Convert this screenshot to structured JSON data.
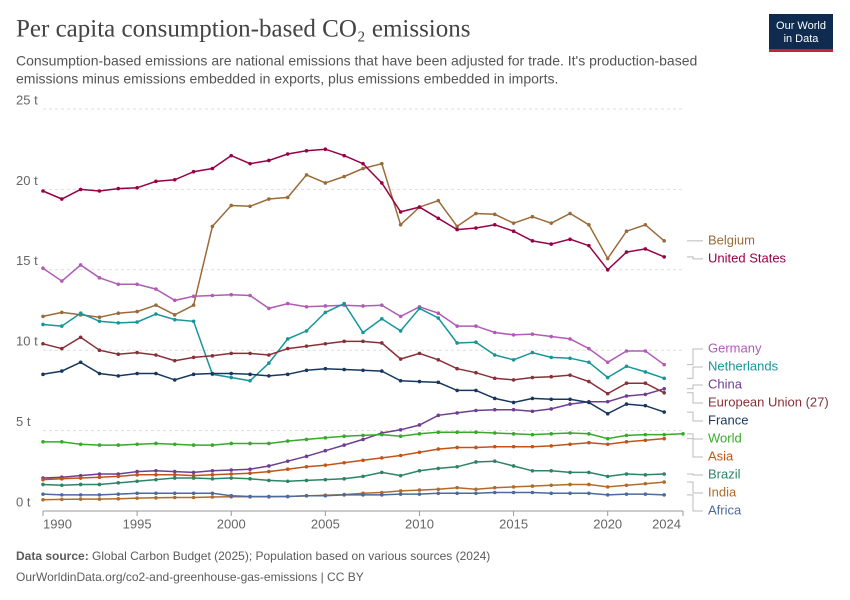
{
  "logo": [
    "Our World",
    "in Data"
  ],
  "chart_data": {
    "type": "line",
    "title": "Per capita consumption-based CO₂ emissions",
    "subtitle": [
      "Consumption-based emissions are national emissions that have been adjusted for trade. It's production-based",
      "emissions minus emissions embedded in exports, plus emissions embedded in imports."
    ],
    "source_label": "Data source:",
    "source": "Global Carbon Budget (2025); Population based on various sources (2024)",
    "url": "OurWorldinData.org/co2-and-greenhouse-gas-emissions | CC BY",
    "x": [
      1990,
      1991,
      1992,
      1993,
      1994,
      1995,
      1996,
      1997,
      1998,
      1999,
      2000,
      2001,
      2002,
      2003,
      2004,
      2005,
      2006,
      2007,
      2008,
      2009,
      2010,
      2011,
      2012,
      2013,
      2014,
      2015,
      2016,
      2017,
      2018,
      2019,
      2020,
      2021,
      2022,
      2023,
      2024
    ],
    "xlim": [
      1990,
      2024
    ],
    "xticks": [
      1990,
      1995,
      2000,
      2005,
      2010,
      2015,
      2020,
      2024
    ],
    "ylim": [
      0,
      25
    ],
    "yticks": [
      {
        "value": 0,
        "label": "0 t"
      },
      {
        "value": 5,
        "label": "5 t"
      },
      {
        "value": 10,
        "label": "10 t"
      },
      {
        "value": 15,
        "label": "15 t"
      },
      {
        "value": 20,
        "label": "20 t"
      },
      {
        "value": 25,
        "label": "25 t"
      }
    ],
    "grid": true,
    "series": [
      {
        "name": "Belgium",
        "color": "#9a6b3a",
        "values": [
          12.1,
          12.35,
          12.2,
          12.05,
          12.3,
          12.4,
          12.8,
          12.2,
          12.8,
          17.7,
          19.0,
          18.95,
          19.4,
          19.5,
          20.9,
          20.4,
          20.8,
          21.3,
          21.6,
          17.8,
          18.9,
          19.3,
          17.7,
          18.5,
          18.45,
          17.9,
          18.3,
          17.9,
          18.5,
          17.8,
          15.7,
          17.4,
          17.8,
          16.8,
          null
        ]
      },
      {
        "name": "United States",
        "color": "#970046",
        "values": [
          19.9,
          19.4,
          20.0,
          19.9,
          20.05,
          20.1,
          20.5,
          20.6,
          21.1,
          21.3,
          22.1,
          21.6,
          21.8,
          22.2,
          22.4,
          22.5,
          22.1,
          21.6,
          20.4,
          18.6,
          18.9,
          18.2,
          17.5,
          17.6,
          17.8,
          17.4,
          16.8,
          16.6,
          16.9,
          16.5,
          15.0,
          16.1,
          16.3,
          15.8,
          null
        ]
      },
      {
        "name": "Germany",
        "color": "#b05cb5",
        "values": [
          15.1,
          14.3,
          15.3,
          14.5,
          14.1,
          14.1,
          13.8,
          13.1,
          13.35,
          13.4,
          13.45,
          13.4,
          12.6,
          12.9,
          12.7,
          12.75,
          12.8,
          12.75,
          12.8,
          12.1,
          12.7,
          12.3,
          11.5,
          11.5,
          11.1,
          10.95,
          11.0,
          10.85,
          10.7,
          10.1,
          9.25,
          9.95,
          9.95,
          9.1,
          null
        ]
      },
      {
        "name": "Netherlands",
        "color": "#18959a",
        "values": [
          11.6,
          11.5,
          12.3,
          11.8,
          11.7,
          11.75,
          12.25,
          11.9,
          11.8,
          8.5,
          8.3,
          8.1,
          9.2,
          10.7,
          11.2,
          12.35,
          12.9,
          11.1,
          11.95,
          11.2,
          12.6,
          12.0,
          10.45,
          10.5,
          9.7,
          9.4,
          9.85,
          9.55,
          9.5,
          9.25,
          8.3,
          9.0,
          8.65,
          8.25,
          null
        ]
      },
      {
        "name": "China",
        "color": "#6d3e91",
        "values": [
          2.05,
          2.1,
          2.2,
          2.3,
          2.3,
          2.45,
          2.5,
          2.45,
          2.4,
          2.5,
          2.55,
          2.6,
          2.8,
          3.1,
          3.4,
          3.75,
          4.1,
          4.45,
          4.85,
          5.05,
          5.35,
          5.95,
          6.1,
          6.25,
          6.3,
          6.3,
          6.2,
          6.35,
          6.65,
          6.8,
          6.8,
          7.15,
          7.25,
          7.6,
          null
        ]
      },
      {
        "name": "European Union (27)",
        "color": "#883039",
        "values": [
          10.4,
          10.1,
          10.8,
          10.0,
          9.75,
          9.85,
          9.7,
          9.35,
          9.55,
          9.65,
          9.8,
          9.8,
          9.7,
          10.1,
          10.25,
          10.4,
          10.55,
          10.55,
          10.45,
          9.45,
          9.8,
          9.4,
          8.85,
          8.6,
          8.25,
          8.15,
          8.3,
          8.35,
          8.45,
          8.05,
          7.3,
          7.95,
          7.95,
          7.35,
          null
        ]
      },
      {
        "name": "France",
        "color": "#18375f",
        "values": [
          8.5,
          8.7,
          9.25,
          8.55,
          8.4,
          8.55,
          8.55,
          8.15,
          8.5,
          8.55,
          8.55,
          8.5,
          8.4,
          8.5,
          8.75,
          8.85,
          8.8,
          8.75,
          8.7,
          8.1,
          8.05,
          8.0,
          7.5,
          7.5,
          7.0,
          6.75,
          7.0,
          6.95,
          6.95,
          6.75,
          6.05,
          6.65,
          6.55,
          6.15,
          null
        ]
      },
      {
        "name": "World",
        "color": "#38aa2a",
        "values": [
          4.3,
          4.3,
          4.15,
          4.1,
          4.1,
          4.15,
          4.2,
          4.15,
          4.1,
          4.1,
          4.2,
          4.2,
          4.2,
          4.35,
          4.45,
          4.55,
          4.65,
          4.7,
          4.75,
          4.65,
          4.8,
          4.9,
          4.9,
          4.9,
          4.85,
          4.8,
          4.75,
          4.8,
          4.85,
          4.8,
          4.5,
          4.7,
          4.75,
          4.75,
          4.8
        ]
      },
      {
        "name": "Asia",
        "color": "#c15417",
        "values": [
          1.95,
          2.0,
          2.05,
          2.1,
          2.15,
          2.25,
          2.25,
          2.25,
          2.2,
          2.25,
          2.3,
          2.35,
          2.45,
          2.6,
          2.75,
          2.85,
          3.0,
          3.15,
          3.3,
          3.45,
          3.65,
          3.85,
          3.95,
          3.95,
          4.0,
          4.0,
          4.0,
          4.05,
          4.15,
          4.25,
          4.15,
          4.3,
          4.4,
          4.5,
          null
        ]
      },
      {
        "name": "Brazil",
        "color": "#2c8465",
        "values": [
          1.65,
          1.6,
          1.65,
          1.65,
          1.75,
          1.85,
          1.95,
          2.05,
          2.05,
          2.0,
          2.05,
          2.0,
          1.9,
          1.85,
          1.9,
          1.95,
          2.0,
          2.15,
          2.4,
          2.2,
          2.5,
          2.65,
          2.75,
          3.05,
          3.1,
          2.8,
          2.5,
          2.5,
          2.4,
          2.4,
          2.15,
          2.3,
          2.25,
          2.3,
          null
        ]
      },
      {
        "name": "India",
        "color": "#b16b2a",
        "values": [
          0.7,
          0.72,
          0.74,
          0.74,
          0.76,
          0.8,
          0.82,
          0.84,
          0.84,
          0.87,
          0.88,
          0.88,
          0.88,
          0.9,
          0.94,
          0.98,
          1.02,
          1.1,
          1.15,
          1.25,
          1.3,
          1.35,
          1.45,
          1.35,
          1.45,
          1.5,
          1.55,
          1.6,
          1.65,
          1.65,
          1.5,
          1.6,
          1.7,
          1.8,
          null
        ]
      },
      {
        "name": "Africa",
        "color": "#4c6a9c",
        "values": [
          1.05,
          1.0,
          1.0,
          1.0,
          1.05,
          1.1,
          1.1,
          1.1,
          1.1,
          1.1,
          0.95,
          0.9,
          0.9,
          0.9,
          0.95,
          0.95,
          1.0,
          1.0,
          1.0,
          1.05,
          1.05,
          1.1,
          1.1,
          1.1,
          1.15,
          1.15,
          1.15,
          1.1,
          1.1,
          1.1,
          1.0,
          1.05,
          1.05,
          1.0,
          null
        ]
      }
    ]
  }
}
